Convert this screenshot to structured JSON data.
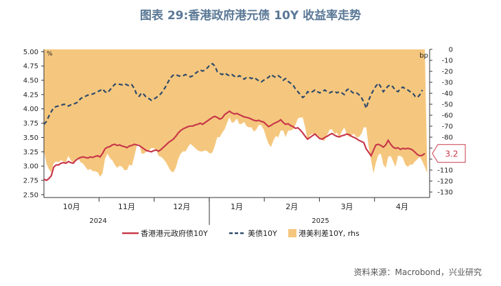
{
  "title": "图表 29:香港政府港元债 10Y 收益率走势",
  "source": "资料来源：Macrobond，兴业研究",
  "chart_data": {
    "type": "line",
    "left_axis": {
      "unit": "%",
      "ticks": [
        "5.00",
        "4.75",
        "4.50",
        "4.25",
        "4.00",
        "3.75",
        "3.50",
        "3.25",
        "3.00",
        "2.75",
        "2.50"
      ],
      "ylim": [
        2.45,
        5.04
      ]
    },
    "right_axis": {
      "unit": "bp",
      "ticks": [
        "0",
        "-10",
        "-20",
        "-30",
        "-40",
        "-50",
        "-60",
        "-70",
        "-80",
        "-90",
        "-100",
        "-110",
        "-120",
        "-130"
      ],
      "ylim": [
        -135,
        0
      ]
    },
    "x_months": [
      "10月",
      "11月",
      "12月",
      "1月",
      "2月",
      "3月",
      "4月"
    ],
    "x_years": [
      "2024",
      "2025"
    ],
    "legend": [
      "香港港元政府债10Y",
      "美债10Y",
      "港美利差10Y, rhs"
    ],
    "end_labels": {
      "us": "4.33",
      "hk": "3.2"
    },
    "colors": {
      "hk": "#c8384a",
      "us": "#2f4a6b",
      "spread": "#f5c77e"
    },
    "hk_series": [
      2.77,
      2.75,
      2.78,
      2.83,
      2.98,
      3.02,
      3.02,
      3.05,
      3.06,
      3.05,
      3.08,
      3.06,
      3.05,
      3.1,
      3.13,
      3.15,
      3.16,
      3.15,
      3.14,
      3.16,
      3.15,
      3.17,
      3.18,
      3.16,
      3.22,
      3.3,
      3.33,
      3.34,
      3.37,
      3.38,
      3.36,
      3.37,
      3.35,
      3.34,
      3.32,
      3.35,
      3.36,
      3.38,
      3.37,
      3.36,
      3.33,
      3.3,
      3.27,
      3.26,
      3.25,
      3.27,
      3.28,
      3.26,
      3.29,
      3.33,
      3.37,
      3.41,
      3.44,
      3.47,
      3.52,
      3.58,
      3.62,
      3.65,
      3.67,
      3.69,
      3.7,
      3.7,
      3.72,
      3.73,
      3.75,
      3.73,
      3.76,
      3.79,
      3.82,
      3.85,
      3.87,
      3.85,
      3.82,
      3.84,
      3.9,
      3.93,
      3.96,
      3.93,
      3.91,
      3.92,
      3.9,
      3.88,
      3.86,
      3.85,
      3.84,
      3.82,
      3.8,
      3.79,
      3.8,
      3.78,
      3.77,
      3.73,
      3.69,
      3.71,
      3.74,
      3.76,
      3.78,
      3.81,
      3.76,
      3.73,
      3.74,
      3.71,
      3.69,
      3.66,
      3.67,
      3.63,
      3.58,
      3.52,
      3.47,
      3.5,
      3.53,
      3.56,
      3.52,
      3.48,
      3.47,
      3.5,
      3.52,
      3.55,
      3.57,
      3.54,
      3.52,
      3.51,
      3.53,
      3.54,
      3.56,
      3.55,
      3.52,
      3.5,
      3.48,
      3.45,
      3.43,
      3.41,
      3.3,
      3.24,
      3.18,
      3.28,
      3.37,
      3.38,
      3.36,
      3.33,
      3.37,
      3.45,
      3.38,
      3.33,
      3.31,
      3.32,
      3.29,
      3.31,
      3.3,
      3.31,
      3.3,
      3.28,
      3.24,
      3.2,
      3.18,
      3.19,
      3.22
    ],
    "us_series": [
      3.73,
      3.78,
      3.87,
      3.95,
      4.02,
      4.04,
      4.05,
      4.06,
      4.08,
      4.08,
      4.05,
      4.07,
      4.08,
      4.1,
      4.12,
      4.18,
      4.2,
      4.22,
      4.24,
      4.25,
      4.26,
      4.28,
      4.3,
      4.32,
      4.35,
      4.3,
      4.28,
      4.33,
      4.38,
      4.43,
      4.44,
      4.43,
      4.42,
      4.44,
      4.42,
      4.4,
      4.42,
      4.36,
      4.25,
      4.22,
      4.28,
      4.25,
      4.2,
      4.18,
      4.15,
      4.17,
      4.2,
      4.23,
      4.27,
      4.33,
      4.4,
      4.48,
      4.55,
      4.59,
      4.6,
      4.58,
      4.57,
      4.58,
      4.6,
      4.58,
      4.56,
      4.58,
      4.62,
      4.65,
      4.68,
      4.66,
      4.68,
      4.72,
      4.77,
      4.79,
      4.75,
      4.65,
      4.62,
      4.6,
      4.63,
      4.6,
      4.58,
      4.6,
      4.57,
      4.55,
      4.58,
      4.56,
      4.52,
      4.55,
      4.55,
      4.53,
      4.55,
      4.52,
      4.49,
      4.47,
      4.5,
      4.53,
      4.55,
      4.6,
      4.57,
      4.55,
      4.58,
      4.55,
      4.5,
      4.53,
      4.48,
      4.45,
      4.42,
      4.35,
      4.3,
      4.25,
      4.2,
      4.23,
      4.3,
      4.28,
      4.3,
      4.33,
      4.3,
      4.28,
      4.3,
      4.33,
      4.3,
      4.28,
      4.3,
      4.31,
      4.28,
      4.3,
      4.28,
      4.25,
      4.33,
      4.35,
      4.3,
      4.27,
      4.28,
      4.25,
      4.2,
      4.12,
      4.01,
      4.15,
      4.25,
      4.33,
      4.4,
      4.45,
      4.38,
      4.3,
      4.35,
      4.4,
      4.42,
      4.38,
      4.32,
      4.3,
      4.35,
      4.38,
      4.35,
      4.33,
      4.3,
      4.28,
      4.22,
      4.2,
      4.25,
      4.33
    ],
    "spread_series": [
      -92,
      -104,
      -109,
      -112,
      -104,
      -102,
      -103,
      -101,
      -102,
      -103,
      -97,
      -101,
      -103,
      -100,
      -99,
      -103,
      -104,
      -107,
      -110,
      -109,
      -111,
      -111,
      -112,
      -116,
      -113,
      -100,
      -95,
      -99,
      -101,
      -105,
      -108,
      -106,
      -107,
      -110,
      -110,
      -105,
      -106,
      -98,
      -88,
      -86,
      -95,
      -95,
      -93,
      -92,
      -90,
      -90,
      -92,
      -97,
      -98,
      -100,
      -103,
      -107,
      -111,
      -112,
      -108,
      -100,
      -95,
      -93,
      -93,
      -89,
      -86,
      -88,
      -90,
      -92,
      -93,
      -93,
      -92,
      -93,
      -95,
      -94,
      -88,
      -80,
      -80,
      -76,
      -73,
      -67,
      -62,
      -67,
      -66,
      -63,
      -68,
      -68,
      -66,
      -70,
      -71,
      -71,
      -75,
      -73,
      -69,
      -69,
      -73,
      -80,
      -86,
      -89,
      -83,
      -79,
      -80,
      -74,
      -74,
      -80,
      -74,
      -74,
      -73,
      -69,
      -63,
      -62,
      -62,
      -71,
      -83,
      -78,
      -77,
      -77,
      -78,
      -80,
      -83,
      -83,
      -78,
      -73,
      -73,
      -77,
      -76,
      -80,
      -75,
      -71,
      -77,
      -80,
      -78,
      -77,
      -80,
      -80,
      -77,
      -71,
      -71,
      -89,
      -101,
      -113,
      -103,
      -96,
      -95,
      -105,
      -108,
      -98,
      -97,
      -102,
      -107,
      -97,
      -97,
      -99,
      -105,
      -107,
      -105,
      -105,
      -102,
      -100,
      -98,
      -102,
      -107,
      -113
    ]
  }
}
